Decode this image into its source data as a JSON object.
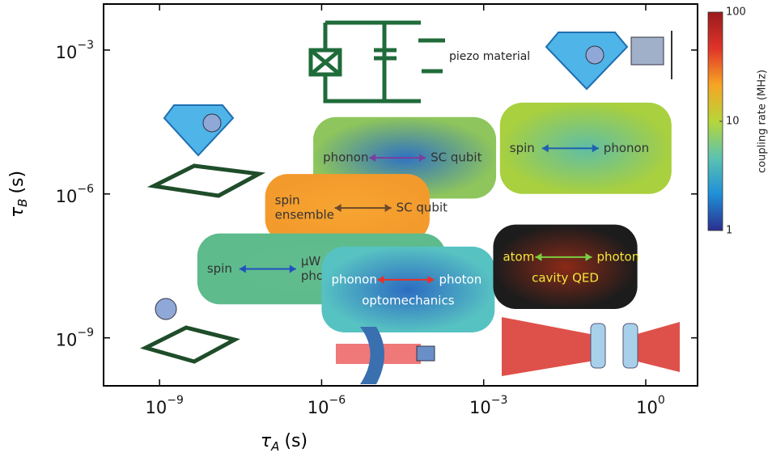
{
  "chart_data": {
    "type": "region",
    "x_label": {
      "symbol": "τ",
      "subscript": "A",
      "unit": "(s)"
    },
    "y_label": {
      "symbol": "τ",
      "subscript": "B",
      "unit": "(s)"
    },
    "log_x": true,
    "log_y": true,
    "xlim": [
      9.2e-11,
      9.1
    ],
    "ylim": [
      1e-10,
      0.0091
    ],
    "xticks": [
      {
        "value": 1e-09,
        "label": "10",
        "exponent": "−9"
      },
      {
        "value": 1e-06,
        "label": "10",
        "exponent": "−6"
      },
      {
        "value": 0.001,
        "label": "10",
        "exponent": "−3"
      },
      {
        "value": 1,
        "label": "10",
        "exponent": "0"
      }
    ],
    "yticks": [
      {
        "value": 0.001,
        "label": "10",
        "exponent": "−3"
      },
      {
        "value": 1e-06,
        "label": "10",
        "exponent": "−6"
      },
      {
        "value": 1e-09,
        "label": "10",
        "exponent": "−9"
      }
    ],
    "regions": [
      {
        "from": [
          "phonon"
        ],
        "to": [
          "SC qubit"
        ],
        "caption": null,
        "x": [
          7e-07,
          0.0017
        ],
        "y": [
          8e-07,
          4e-05
        ],
        "fill": "#8ec55c",
        "center": "#2f72c2",
        "text_color": "#333333",
        "arrow_color": "#7a3fa0"
      },
      {
        "from": [
          "spin"
        ],
        "to": [
          "phonon"
        ],
        "caption": null,
        "x": [
          0.002,
          3
        ],
        "y": [
          1e-06,
          8e-05
        ],
        "fill": "#a9d03e",
        "center": "#5fbea5",
        "text_color": "#333333",
        "arrow_color": "#1f5fb0"
      },
      {
        "from": [
          "spin",
          "ensemble"
        ],
        "to": [
          "SC qubit"
        ],
        "caption": null,
        "x": [
          9e-08,
          0.0001
        ],
        "y": [
          1e-07,
          2.6e-06
        ],
        "fill": "#f39a2c",
        "center": "#f7a532",
        "text_color": "#333333",
        "arrow_color": "#6b4a2a"
      },
      {
        "from": [
          "spin"
        ],
        "to": [
          "μW",
          "photon"
        ],
        "caption": null,
        "x": [
          5e-09,
          0.0002
        ],
        "y": [
          5e-09,
          1.5e-07
        ],
        "fill": "#5dbb8c",
        "center": "#62bd8e",
        "text_color": "#333333",
        "arrow_color": "#2050c0"
      },
      {
        "from": [
          "phonon"
        ],
        "to": [
          "photon"
        ],
        "caption": "optomechanics",
        "x": [
          1e-06,
          0.0016
        ],
        "y": [
          1.3e-09,
          8e-08
        ],
        "fill": "#57c2c2",
        "center": "#2c6cc2",
        "text_color": "#ffffff",
        "arrow_color": "#e8302a"
      },
      {
        "from": [
          "atom"
        ],
        "to": [
          "photon"
        ],
        "caption": "cavity QED",
        "x": [
          0.0015,
          0.7
        ],
        "y": [
          4e-09,
          2.3e-07
        ],
        "fill": "#1c1c1c",
        "center": "#8a2a18",
        "text_color": "#f2e63a",
        "arrow_color": "#7acc40"
      }
    ],
    "annotations": {
      "piezo": "piezo material"
    },
    "colorbar": {
      "label": "coupling rate (MHz)",
      "lim": [
        1,
        100
      ],
      "ticks": [
        1,
        10,
        100
      ],
      "colors": [
        "#2b2f8f",
        "#1f8fd8",
        "#5cc3b0",
        "#b6d63a",
        "#f6a523",
        "#e0342a",
        "#9a1a1c"
      ]
    }
  }
}
